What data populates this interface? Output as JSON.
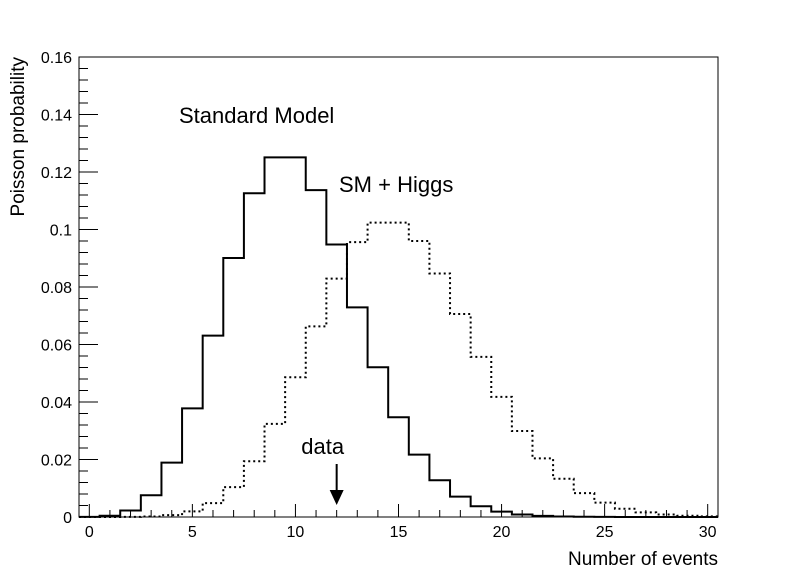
{
  "chart_data": {
    "type": "line",
    "title": "",
    "xlabel": "Number of events",
    "ylabel": "Poisson probability",
    "xlim": [
      -0.5,
      30.5
    ],
    "ylim": [
      0,
      0.16
    ],
    "x_ticks": [
      0,
      5,
      10,
      15,
      20,
      25,
      30
    ],
    "y_ticks": [
      0,
      0.02,
      0.04,
      0.06,
      0.08,
      0.1,
      0.12,
      0.14,
      0.16
    ],
    "y_tick_labels": [
      "0",
      "0.02",
      "0.04",
      "0.06",
      "0.08",
      "0.1",
      "0.12",
      "0.14",
      "0.16"
    ],
    "grid": false,
    "legend": "none",
    "x": [
      0,
      1,
      2,
      3,
      4,
      5,
      6,
      7,
      8,
      9,
      10,
      11,
      12,
      13,
      14,
      15,
      16,
      17,
      18,
      19,
      20,
      21,
      22,
      23,
      24,
      25,
      26,
      27,
      28,
      29,
      30
    ],
    "series": [
      {
        "line_style": "solid",
        "values": [
          4.54e-05,
          0.000454,
          0.00227,
          0.00757,
          0.0189,
          0.0378,
          0.0631,
          0.0901,
          0.1126,
          0.1251,
          0.1251,
          0.1137,
          0.0948,
          0.0729,
          0.0521,
          0.0347,
          0.0217,
          0.0128,
          0.00709,
          0.00373,
          0.00187,
          0.00089,
          0.000404,
          0.000176,
          7.33e-05,
          2.93e-05,
          1.13e-05,
          4.2e-06,
          1.5e-06,
          5e-07,
          2e-07
        ]
      },
      {
        "line_style": "dotted",
        "values": [
          3e-07,
          4.6e-06,
          3.43e-05,
          0.000172,
          0.000645,
          0.00194,
          0.00484,
          0.0104,
          0.0194,
          0.0324,
          0.0486,
          0.0663,
          0.0829,
          0.0956,
          0.1024,
          0.1024,
          0.096,
          0.0847,
          0.0706,
          0.0557,
          0.0418,
          0.0299,
          0.0204,
          0.0133,
          0.00829,
          0.00498,
          0.00287,
          0.00159,
          0.00085,
          0.00044,
          0.00022
        ]
      }
    ],
    "annotations": [
      {
        "text": "Standard Model"
      },
      {
        "text": "SM + Higgs"
      },
      {
        "text": "data",
        "x": 12
      }
    ],
    "marker": {
      "x": 12,
      "shape": "arrow"
    }
  }
}
